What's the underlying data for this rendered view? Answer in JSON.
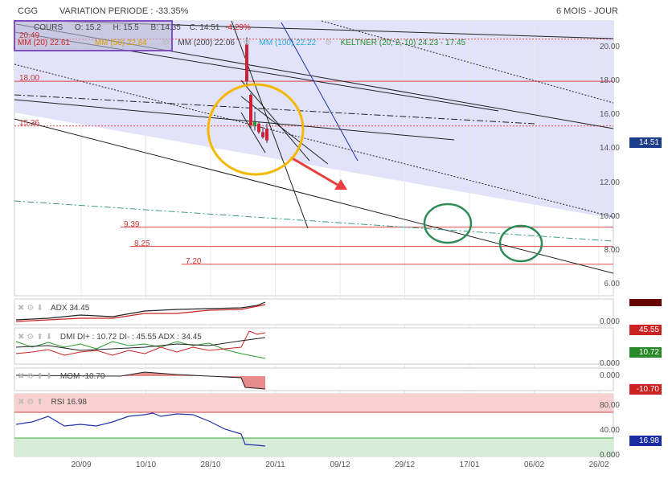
{
  "header": {
    "ticker": "CGG",
    "variation_label": "VARIATION PERIODE : -33.35%",
    "period": "6 MOIS - JOUR"
  },
  "ohlc": {
    "cours_label": "COURS",
    "open": "O: 15.2",
    "high": "H: 15.5",
    "low": "B: 14.35",
    "close": "C: 14.51",
    "change": "-4.29%"
  },
  "legend": {
    "mm20": "MM (20) 22.61",
    "mm50": "MM (50) 22.84",
    "mm200": "MM (200) 22.06",
    "mm100": "MM (100) 22.22",
    "keltner": "KELTNER (20, 2, 10) 24.23 - 17.45"
  },
  "price_badge": "14.51",
  "level_labels": {
    "l2049": "20.49",
    "l18": "18.00",
    "l1536": "15.36",
    "l939": "9.39",
    "l825": "8.25",
    "l720": "7.20"
  },
  "colors": {
    "band": "#e1e1fb",
    "up": "#2a9a2a",
    "down": "#cc2233",
    "annot": "#f5b800",
    "target": "#2e8b57",
    "arrow": "#e84040"
  },
  "chart_data": {
    "type": "candlestick",
    "y_range": [
      6,
      20
    ],
    "y_ticks": [
      "20.00",
      "18.00",
      "16.00",
      "14.00",
      "12.00",
      "10.00",
      "8.00",
      "6.00"
    ],
    "x_ticks": [
      "20/09",
      "10/10",
      "28/10",
      "20/11",
      "09/12",
      "29/12",
      "17/01",
      "06/02",
      "26/02"
    ],
    "horizontal_levels": [
      20.49,
      18.0,
      15.36,
      9.39,
      8.25,
      7.2
    ],
    "candles": [
      {
        "o": 20.2,
        "h": 20.6,
        "l": 17.8,
        "c": 18.0
      },
      {
        "o": 17.2,
        "h": 17.3,
        "l": 15.2,
        "c": 15.4
      },
      {
        "o": 15.4,
        "h": 16.2,
        "l": 15.1,
        "c": 15.6
      },
      {
        "o": 15.5,
        "h": 15.6,
        "l": 14.9,
        "c": 15.0
      },
      {
        "o": 15.0,
        "h": 15.3,
        "l": 14.6,
        "c": 14.7
      },
      {
        "o": 15.2,
        "h": 15.5,
        "l": 14.35,
        "c": 14.51
      }
    ]
  },
  "indicators": {
    "adx": {
      "label": "ADX",
      "value": "34.45",
      "badge": "",
      "ticks": [
        "0.000"
      ]
    },
    "dmi": {
      "label": "DMI",
      "text": "DI+ : 10.72 DI- : 45.55 ADX : 34.45",
      "badge_top": "45.55",
      "badge": "10.72",
      "ticks": [
        "0.000"
      ]
    },
    "mom": {
      "label": "MOM",
      "value": "-10.70",
      "badge": "-10.70",
      "ticks": [
        "0.000"
      ]
    },
    "rsi": {
      "label": "RSI",
      "value": "16.98",
      "badge": "16.98",
      "ticks": [
        "80.00",
        "40.00",
        "0.000"
      ]
    }
  }
}
